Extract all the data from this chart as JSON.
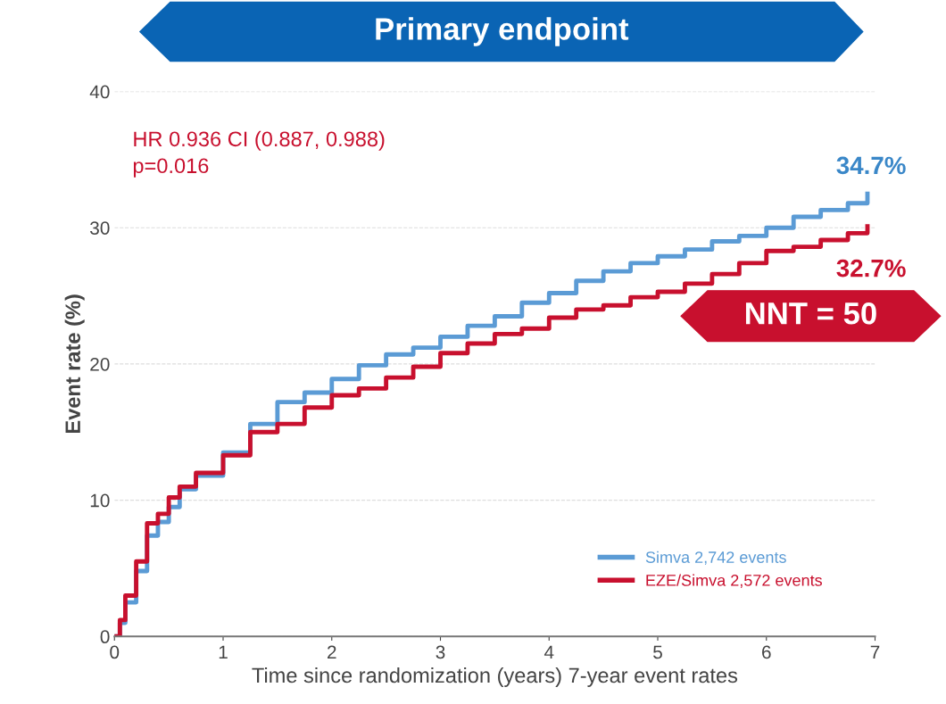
{
  "chart_data": {
    "type": "step",
    "title": "Primary endpoint",
    "xlabel": "Time since randomization (years) 7-year event rates",
    "ylabel": "Event rate (%)",
    "xlim": [
      0,
      7
    ],
    "xticks": [
      0,
      1,
      2,
      3,
      4,
      5,
      6,
      7
    ],
    "ylim": [
      0,
      40
    ],
    "yticks": [
      0,
      10,
      20,
      30,
      40
    ],
    "grid": "y",
    "legend": "bottom right",
    "line_style": "solid",
    "marker": "none",
    "x": [
      0,
      0.05,
      0.1,
      0.2,
      0.3,
      0.4,
      0.5,
      0.6,
      0.75,
      1.0,
      1.25,
      1.5,
      1.75,
      2.0,
      2.25,
      2.5,
      2.75,
      3.0,
      3.25,
      3.5,
      3.75,
      4.0,
      4.25,
      4.5,
      4.75,
      5.0,
      5.25,
      5.5,
      5.75,
      6.0,
      6.25,
      6.5,
      6.75,
      6.93
    ],
    "series": [
      {
        "name": "Simva 2,742 events",
        "color": "#5b9bd5",
        "values": [
          0,
          1.0,
          2.5,
          4.8,
          7.4,
          8.4,
          9.5,
          10.8,
          11.8,
          13.5,
          15.6,
          17.2,
          17.9,
          18.9,
          19.9,
          20.7,
          21.2,
          22.0,
          22.8,
          23.5,
          24.5,
          25.2,
          26.1,
          26.8,
          27.4,
          27.9,
          28.4,
          29.0,
          29.4,
          30.0,
          30.8,
          31.3,
          31.8,
          32.5
        ]
      },
      {
        "name": "EZE/Simva 2,572 events",
        "color": "#c8102e",
        "values": [
          0,
          1.2,
          3.0,
          5.5,
          8.3,
          9.0,
          10.2,
          11.0,
          12.0,
          13.3,
          15.0,
          15.6,
          16.8,
          17.7,
          18.2,
          19.0,
          19.8,
          20.8,
          21.5,
          22.2,
          22.6,
          23.4,
          24.0,
          24.3,
          24.9,
          25.3,
          25.9,
          26.6,
          27.4,
          28.3,
          28.6,
          29.1,
          29.6,
          30.1
        ]
      }
    ],
    "annotations": [
      "HR 0.936 CI (0.887, 0.988)",
      "p=0.016",
      "34.7%",
      "32.7%",
      "NNT = 50"
    ]
  }
}
